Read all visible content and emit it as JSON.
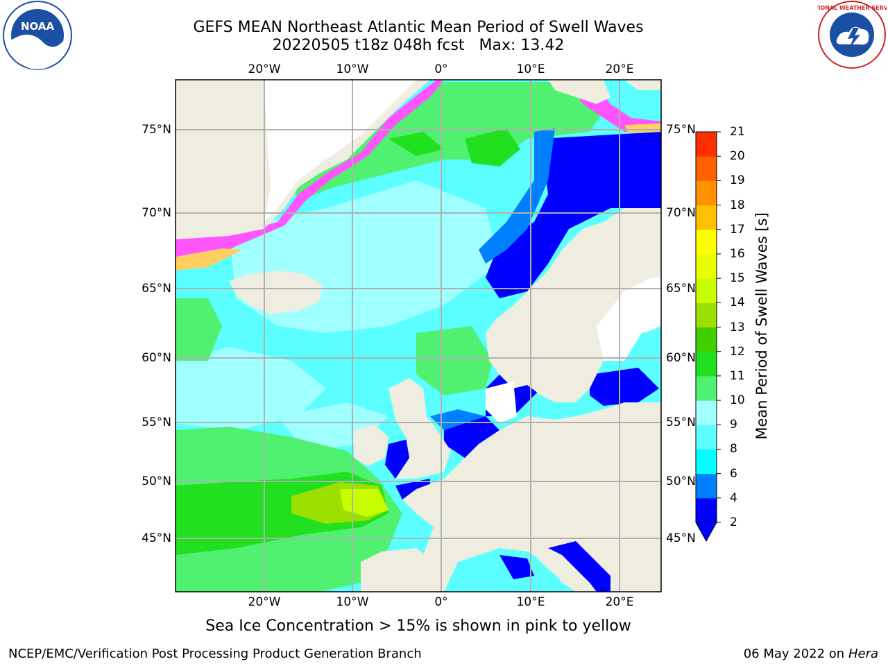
{
  "header": {
    "title_line1": "GEFS MEAN Northeast Atlantic Mean Period of Swell Waves",
    "title_line2_run": "20220505 t18z 048h fcst",
    "title_line2_max": "Max: 13.42"
  },
  "logos": {
    "left": "noaa-logo",
    "right": "national-weather-service-logo",
    "left_text": "NOAA",
    "right_text": "NATIONAL WEATHER SERVICE"
  },
  "map": {
    "lon_labels": [
      "20°W",
      "10°W",
      "0°",
      "10°E",
      "20°E"
    ],
    "lat_labels": [
      "75°N",
      "70°N",
      "65°N",
      "60°N",
      "55°N",
      "50°N",
      "45°N"
    ],
    "colors": {
      "land": "#efeddf",
      "sea_ice_white": "#ffffff",
      "gridline": "#b0b0b0"
    }
  },
  "colorbar": {
    "label": "Mean Period of Swell Waves [s]",
    "ticks": [
      "2",
      "4",
      "6",
      "8",
      "9",
      "10",
      "11",
      "12",
      "13",
      "14",
      "15",
      "16",
      "17",
      "18",
      "19",
      "20",
      "21"
    ],
    "colors": [
      "#0000ff",
      "#0080ff",
      "#00ffff",
      "#5cffff",
      "#a0ffff",
      "#50f070",
      "#20e020",
      "#40d000",
      "#9be000",
      "#c8ff00",
      "#e8ff00",
      "#ffff00",
      "#ffc000",
      "#ff9000",
      "#ff6000",
      "#ff3000",
      "#ff0000"
    ],
    "extend": "min"
  },
  "caption": "Sea Ice Concentration > 15% is shown in pink to yellow",
  "footer": {
    "left": "NCEP/EMC/Verification Post Processing Product Generation Branch",
    "date": "06 May 2022 on",
    "host": "Hera"
  }
}
